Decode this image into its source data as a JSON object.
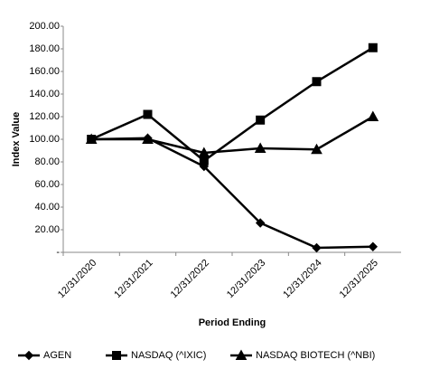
{
  "chart_data": {
    "type": "line",
    "x_label": "Period Ending",
    "y_label": "Index Value",
    "categories": [
      "12/31/2020",
      "12/31/2021",
      "12/31/2022",
      "12/31/2023",
      "12/31/2024",
      "12/31/2025"
    ],
    "series": [
      {
        "name": "AGEN",
        "color": "#000000",
        "marker": "diamond",
        "values": [
          100,
          101,
          76,
          26,
          4,
          5
        ]
      },
      {
        "name": "NASDAQ (^IXIC)",
        "color": "#000000",
        "marker": "square",
        "values": [
          100,
          122,
          81,
          117,
          151,
          181
        ]
      },
      {
        "name": "NASDAQ BIOTECH (^NBI)",
        "color": "#000000",
        "marker": "triangle",
        "values": [
          100,
          100,
          88,
          92,
          91,
          120
        ]
      }
    ],
    "ylim": [
      0,
      200
    ],
    "yticks": [
      {
        "value": 0,
        "label": "-"
      },
      {
        "value": 20,
        "label": "20.00"
      },
      {
        "value": 40,
        "label": "40.00"
      },
      {
        "value": 60,
        "label": "60.00"
      },
      {
        "value": 80,
        "label": "80.00"
      },
      {
        "value": 100,
        "label": "100.00"
      },
      {
        "value": 120,
        "label": "120.00"
      },
      {
        "value": 140,
        "label": "140.00"
      },
      {
        "value": 160,
        "label": "160.00"
      },
      {
        "value": 180,
        "label": "180.00"
      },
      {
        "value": 200,
        "label": "200.00"
      }
    ],
    "grid": false,
    "legend": "bottom"
  }
}
